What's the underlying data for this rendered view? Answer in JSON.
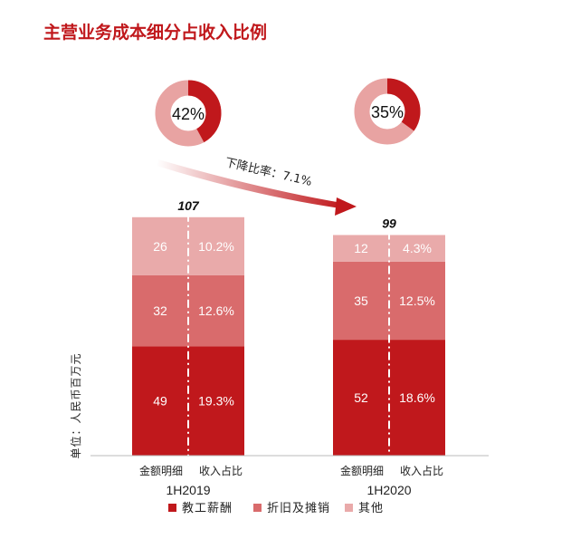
{
  "chart_data": {
    "type": "bar",
    "title": "主营业务成本细分占收入比例",
    "ylabel": "单位：人民币百万元",
    "categories": [
      "1H2019",
      "1H2020"
    ],
    "column_headers": [
      "金额明细",
      "收入占比"
    ],
    "totals": [
      107,
      99
    ],
    "series": [
      {
        "name": "教工薪酬",
        "values": [
          49,
          52
        ],
        "ratios": [
          "19.3%",
          "18.6%"
        ],
        "color": "#c0181c"
      },
      {
        "name": "折旧及摊销",
        "values": [
          32,
          35
        ],
        "ratios": [
          "12.6%",
          "12.5%"
        ],
        "color": "#d96b6c"
      },
      {
        "name": "其他",
        "values": [
          26,
          12
        ],
        "ratios": [
          "10.2%",
          "4.3%"
        ],
        "color": "#e9aaaa"
      }
    ],
    "donuts": [
      {
        "label": "42%",
        "value": 42
      },
      {
        "label": "35%",
        "value": 35
      }
    ],
    "annotation": "下降比率：7.1%",
    "legend_position": "bottom",
    "grid": false
  }
}
